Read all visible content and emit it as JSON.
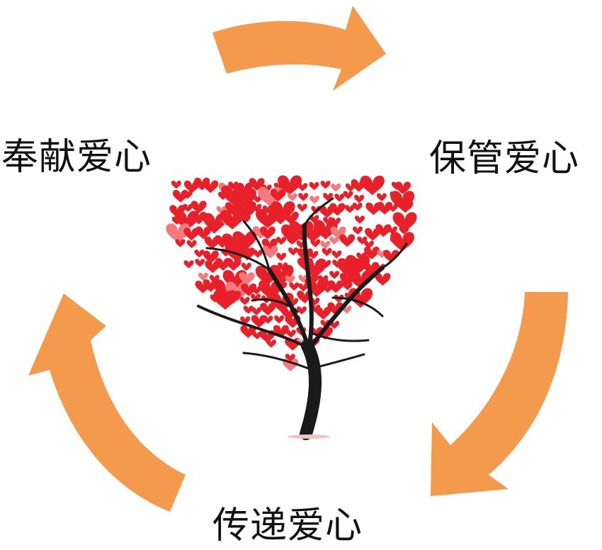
{
  "labels": {
    "left": "奉献爱心",
    "right": "保管爱心",
    "bottom": "传递爱心"
  },
  "colors": {
    "arrow": "#F39A4C",
    "heart": "#E8202A",
    "heart_light": "#F47A7E",
    "trunk": "#1A1A1A"
  },
  "icons": {
    "center": "heart-tree-icon",
    "arrows": [
      "cycle-arrow-top-icon",
      "cycle-arrow-right-icon",
      "cycle-arrow-left-icon"
    ]
  }
}
